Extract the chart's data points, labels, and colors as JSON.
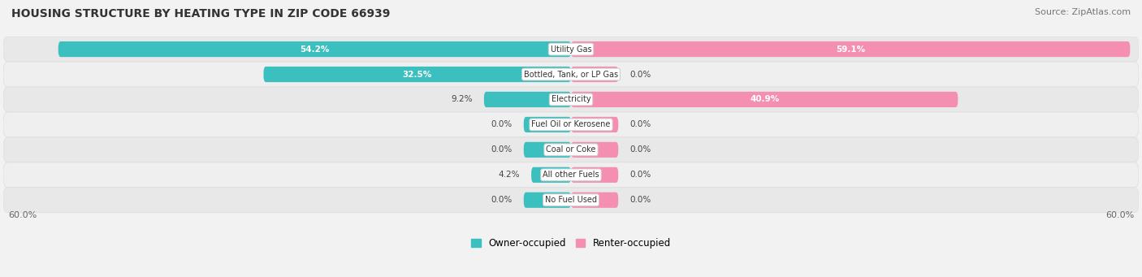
{
  "title": "HOUSING STRUCTURE BY HEATING TYPE IN ZIP CODE 66939",
  "source": "Source: ZipAtlas.com",
  "categories": [
    "Utility Gas",
    "Bottled, Tank, or LP Gas",
    "Electricity",
    "Fuel Oil or Kerosene",
    "Coal or Coke",
    "All other Fuels",
    "No Fuel Used"
  ],
  "owner_values": [
    54.2,
    32.5,
    9.2,
    0.0,
    0.0,
    4.2,
    0.0
  ],
  "renter_values": [
    59.1,
    0.0,
    40.9,
    0.0,
    0.0,
    0.0,
    0.0
  ],
  "owner_color": "#3BBFBF",
  "renter_color": "#F48FB1",
  "owner_label": "Owner-occupied",
  "renter_label": "Renter-occupied",
  "max_value": 60.0,
  "bg_color": "#f2f2f2",
  "row_bg_even": "#e8e8e8",
  "row_bg_odd": "#efefef",
  "label_bg": "#ffffff",
  "title_fontsize": 10,
  "source_fontsize": 8,
  "bar_height": 0.62,
  "stub_value": 5.0,
  "axis_label": "60.0%",
  "value_fontsize": 7.5,
  "cat_fontsize": 7.0
}
